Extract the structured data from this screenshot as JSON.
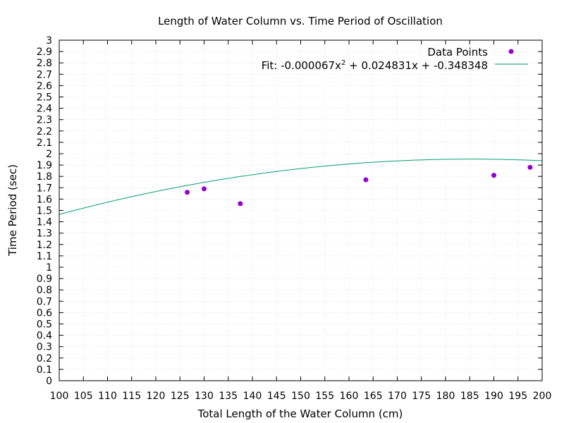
{
  "chart_data": {
    "type": "scatter",
    "title": "Length of Water Column vs. Time Period of Oscillation",
    "xlabel": "Total Length of the Water Column (cm)",
    "ylabel": "Time Period (sec)",
    "xlim": [
      100,
      200
    ],
    "ylim": [
      0,
      3
    ],
    "xticks": [
      "100",
      "105",
      "110",
      "115",
      "120",
      "125",
      "130",
      "135",
      "140",
      "145",
      "150",
      "155",
      "160",
      "165",
      "170",
      "175",
      "180",
      "185",
      "190",
      "195",
      "200"
    ],
    "yticks": [
      "0",
      "0.1",
      "0.2",
      "0.3",
      "0.4",
      "0.5",
      "0.6",
      "0.7",
      "0.8",
      "0.9",
      "1",
      "1.1",
      "1.2",
      "1.3",
      "1.4",
      "1.5",
      "1.6",
      "1.7",
      "1.8",
      "1.9",
      "2",
      "2.1",
      "2.2",
      "2.3",
      "2.4",
      "2.5",
      "2.6",
      "2.7",
      "2.8",
      "2.9",
      "3"
    ],
    "grid": true,
    "legend_position": "top-right",
    "series": [
      {
        "name": "Data Points",
        "kind": "points",
        "color": "#9400d3",
        "x": [
          126.5,
          130,
          137.5,
          163.5,
          190,
          197.5
        ],
        "y": [
          1.66,
          1.69,
          1.56,
          1.77,
          1.81,
          1.88
        ]
      },
      {
        "name_prefix": "Fit: -0.000067x",
        "name_sup": "2",
        "name_suffix": " + 0.024831x + -0.348348",
        "kind": "line",
        "color": "#009e73",
        "coefficients": [
          -6.7e-05,
          0.024831,
          -0.348348
        ]
      }
    ]
  }
}
